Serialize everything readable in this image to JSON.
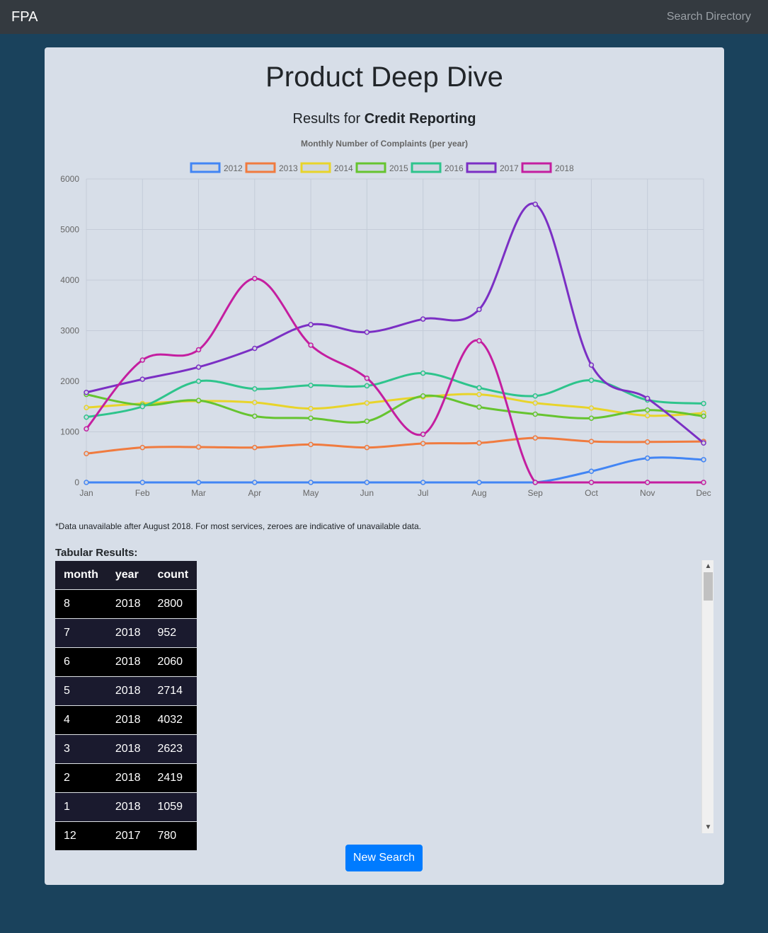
{
  "navbar": {
    "brand": "FPA",
    "search_link": "Search Directory"
  },
  "page": {
    "title": "Product Deep Dive",
    "results_prefix": "Results for",
    "product": "Credit Reporting",
    "footnote": "*Data unavailable after August 2018. For most services, zeroes are indicative of unavailable data.",
    "tabular_heading": "Tabular Results:",
    "new_search_label": "New Search"
  },
  "chart_data": {
    "type": "line",
    "title": "Monthly Number of Complaints (per year)",
    "categories": [
      "Jan",
      "Feb",
      "Mar",
      "Apr",
      "May",
      "Jun",
      "Jul",
      "Aug",
      "Sep",
      "Oct",
      "Nov",
      "Dec"
    ],
    "ylim": [
      0,
      6000
    ],
    "yticks": [
      0,
      1000,
      2000,
      3000,
      4000,
      5000,
      6000
    ],
    "grid": true,
    "legend_position": "top",
    "series": [
      {
        "name": "2012",
        "color": "#4285f4",
        "values": [
          0,
          0,
          0,
          0,
          0,
          0,
          0,
          0,
          0,
          220,
          480,
          450
        ]
      },
      {
        "name": "2013",
        "color": "#f07b3f",
        "values": [
          570,
          690,
          700,
          690,
          750,
          690,
          770,
          780,
          880,
          810,
          800,
          810
        ]
      },
      {
        "name": "2014",
        "color": "#e8d42a",
        "values": [
          1480,
          1560,
          1610,
          1580,
          1460,
          1570,
          1690,
          1740,
          1570,
          1470,
          1320,
          1370
        ]
      },
      {
        "name": "2015",
        "color": "#66c42f",
        "values": [
          1740,
          1530,
          1620,
          1310,
          1270,
          1210,
          1710,
          1490,
          1350,
          1270,
          1430,
          1310
        ]
      },
      {
        "name": "2016",
        "color": "#2ec48c",
        "values": [
          1290,
          1500,
          2000,
          1850,
          1920,
          1910,
          2160,
          1870,
          1710,
          2020,
          1630,
          1560
        ]
      },
      {
        "name": "2017",
        "color": "#7b2fc4",
        "values": [
          1780,
          2040,
          2280,
          2650,
          3120,
          2970,
          3230,
          3420,
          5500,
          2320,
          1660,
          780
        ]
      },
      {
        "name": "2018",
        "color": "#c41ea0",
        "values": [
          1059,
          2419,
          2623,
          4032,
          2714,
          2060,
          952,
          2800,
          0,
          0,
          0,
          0
        ]
      }
    ]
  },
  "table": {
    "headers": [
      "month",
      "year",
      "count"
    ],
    "rows": [
      [
        "8",
        "2018",
        "2800"
      ],
      [
        "7",
        "2018",
        "952"
      ],
      [
        "6",
        "2018",
        "2060"
      ],
      [
        "5",
        "2018",
        "2714"
      ],
      [
        "4",
        "2018",
        "4032"
      ],
      [
        "3",
        "2018",
        "2623"
      ],
      [
        "2",
        "2018",
        "2419"
      ],
      [
        "1",
        "2018",
        "1059"
      ],
      [
        "12",
        "2017",
        "780"
      ]
    ]
  }
}
